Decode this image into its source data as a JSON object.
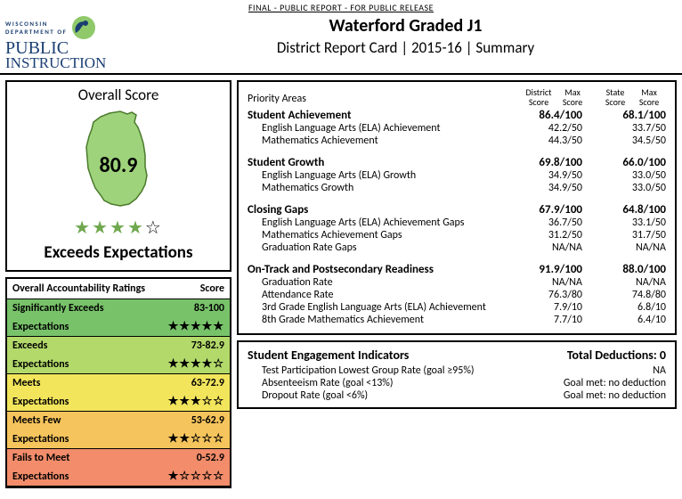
{
  "banner": "FINAL - PUBLIC REPORT - FOR PUBLIC RELEASE",
  "logo": {
    "line1": "WISCONSIN",
    "line2": "DEPARTMENT OF",
    "public": "PUBLIC",
    "instruction": "INSTRUCTION"
  },
  "header": {
    "title": "Waterford Graded J1",
    "subtitle": "District Report Card | 2015-16 | Summary"
  },
  "overall": {
    "title": "Overall Score",
    "score": "80.9",
    "stars_filled": 4,
    "stars_total": 5,
    "rating": "Exceeds Expectations",
    "state_fill": "#9ed37b",
    "state_stroke": "#4a7a2b"
  },
  "ratings_table": {
    "header_label": "Overall Accountability Ratings",
    "header_score": "Score",
    "rows": [
      {
        "bg": "#78c26a",
        "l1": "Significantly Exceeds",
        "l2": "Expectations",
        "score": "83-100",
        "stars_f": 5,
        "stars_t": 5
      },
      {
        "bg": "#b3d96a",
        "l1": "Exceeds",
        "l2": "Expectations",
        "score": "73-82.9",
        "stars_f": 4,
        "stars_t": 5
      },
      {
        "bg": "#f2e55c",
        "l1": "Meets",
        "l2": "Expectations",
        "score": "63-72.9",
        "stars_f": 3,
        "stars_t": 5
      },
      {
        "bg": "#f5c45c",
        "l1": "Meets Few",
        "l2": "Expectations",
        "score": "53-62.9",
        "stars_f": 2,
        "stars_t": 5
      },
      {
        "bg": "#f28c6a",
        "l1": "Fails to Meet",
        "l2": "Expectations",
        "score": "0-52.9",
        "stars_f": 1,
        "stars_t": 5
      }
    ]
  },
  "priority": {
    "label": "Priority Areas",
    "cols": [
      "District Score",
      "Max Score",
      "State Score",
      "Max Score"
    ],
    "sections": [
      {
        "title": "Student Achievement",
        "district": "86.4/100",
        "state": "68.1/100",
        "rows": [
          {
            "label": "English Language Arts (ELA) Achievement",
            "d": "42.2/50",
            "s": "33.7/50"
          },
          {
            "label": "Mathematics Achievement",
            "d": "44.3/50",
            "s": "34.5/50"
          }
        ]
      },
      {
        "title": "Student Growth",
        "district": "69.8/100",
        "state": "66.0/100",
        "rows": [
          {
            "label": "English Language Arts (ELA) Growth",
            "d": "34.9/50",
            "s": "33.0/50"
          },
          {
            "label": "Mathematics Growth",
            "d": "34.9/50",
            "s": "33.0/50"
          }
        ]
      },
      {
        "title": "Closing Gaps",
        "district": "67.9/100",
        "state": "64.8/100",
        "rows": [
          {
            "label": "English Language Arts (ELA) Achievement Gaps",
            "d": "36.7/50",
            "s": "33.1/50"
          },
          {
            "label": "Mathematics Achievement Gaps",
            "d": "31.2/50",
            "s": "31.7/50"
          },
          {
            "label": "Graduation Rate Gaps",
            "d": "NA/NA",
            "s": "NA/NA"
          }
        ]
      },
      {
        "title": "On-Track and Postsecondary Readiness",
        "district": "91.9/100",
        "state": "88.0/100",
        "rows": [
          {
            "label": "Graduation Rate",
            "d": "NA/NA",
            "s": "NA/NA"
          },
          {
            "label": "Attendance Rate",
            "d": "76.3/80",
            "s": "74.8/80"
          },
          {
            "label": "3rd Grade English Language Arts (ELA) Achievement",
            "d": "7.9/10",
            "s": "6.8/10"
          },
          {
            "label": "8th Grade Mathematics Achievement",
            "d": "7.7/10",
            "s": "6.4/10"
          }
        ]
      }
    ]
  },
  "engagement": {
    "title": "Student Engagement Indicators",
    "deductions_label": "Total Deductions: 0",
    "rows": [
      {
        "label": "Test Participation Lowest Group Rate (goal ≥95%)",
        "val": "NA"
      },
      {
        "label": "Absenteeism Rate (goal <13%)",
        "val": "Goal met: no deduction"
      },
      {
        "label": "Dropout Rate (goal <6%)",
        "val": "Goal met: no deduction"
      }
    ]
  }
}
